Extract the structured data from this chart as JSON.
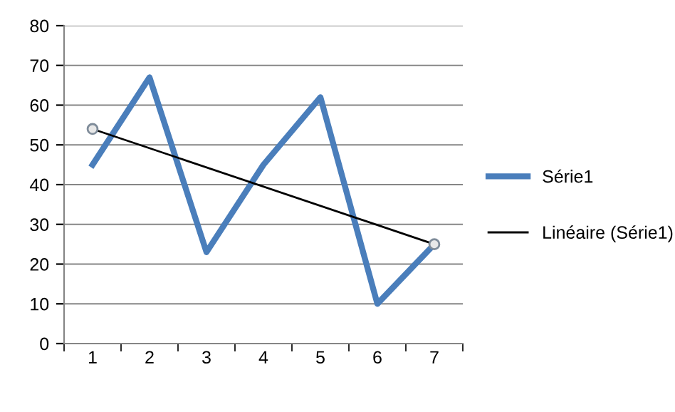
{
  "chart_data": {
    "type": "line",
    "categories": [
      "1",
      "2",
      "3",
      "4",
      "5",
      "6",
      "7"
    ],
    "series": [
      {
        "name": "Série1",
        "color": "#4a7ebb",
        "values": [
          45,
          67,
          23,
          45,
          62,
          10,
          25
        ],
        "marker": "none"
      },
      {
        "name": "Linéaire (Série1)",
        "color": "#000000",
        "x": [
          "1",
          "7"
        ],
        "values": [
          54,
          25
        ],
        "marker": "circle"
      }
    ],
    "ylim": [
      0,
      80
    ],
    "yticks": [
      0,
      10,
      20,
      30,
      40,
      50,
      60,
      70,
      80
    ],
    "grid": "y",
    "legend": "right",
    "line_style": "solid"
  }
}
